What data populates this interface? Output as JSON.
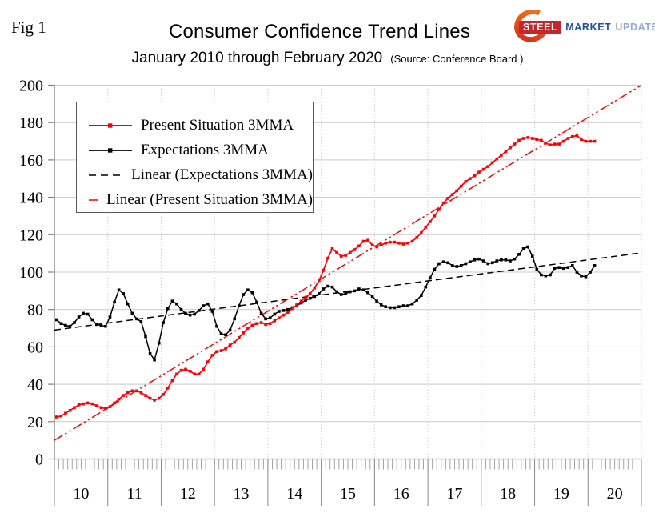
{
  "header": {
    "fig_label": "Fig 1",
    "title": "Consumer Confidence Trend Lines",
    "subtitle": "January 2010 through February 2020",
    "source": "(Source: Conference Board )"
  },
  "logo": {
    "steel": "STEEL",
    "market": "MARKET",
    "update": "UPDATE",
    "steel_bg_color": "#c4262e",
    "market_color": "#27509b",
    "update_color": "#93a9d1",
    "arc_color_start": "#d52b1e",
    "arc_color_end": "#f47b20"
  },
  "legend": {
    "items": [
      {
        "label": "Present Situation 3MMA",
        "style": "red-solid-marker",
        "color": "#ff0000"
      },
      {
        "label": "Expectations 3MMA",
        "style": "black-solid-marker",
        "color": "#000000"
      },
      {
        "label": "Linear (Expectations 3MMA)",
        "style": "black-dashed",
        "color": "#000000"
      },
      {
        "label": "Linear (Present Situation 3MMA)",
        "style": "red-dash-dot-dot",
        "color": "#ff0000"
      }
    ]
  },
  "chart_data": {
    "type": "line",
    "title": "Consumer Confidence Trend Lines",
    "subtitle": "January 2010 through February 2020",
    "x_start": "2010-01",
    "x_end": "2020-02",
    "points_per_year": 12,
    "y_axis": {
      "min": 0,
      "max": 200,
      "tick_step": 20,
      "ticks": [
        0,
        20,
        40,
        60,
        80,
        100,
        120,
        140,
        160,
        180,
        200
      ]
    },
    "x_axis": {
      "year_labels": [
        "10",
        "11",
        "12",
        "13",
        "14",
        "15",
        "16",
        "17",
        "18",
        "19",
        "20"
      ],
      "minor_ticks": "monthly"
    },
    "grid": {
      "horizontal": true,
      "vertical_year_lines": "dotted"
    },
    "legend_position": "upper-left",
    "series": [
      {
        "name": "Present Situation 3MMA",
        "color": "#ff0000",
        "marker": "square",
        "values": [
          22.5,
          23,
          24.5,
          26,
          27.5,
          29,
          29.5,
          30,
          29.5,
          28.5,
          27.5,
          27,
          28,
          30,
          32,
          34,
          35.5,
          36.5,
          36.5,
          35.5,
          34,
          32.5,
          31.5,
          32.5,
          34.5,
          38,
          42,
          45.5,
          47.5,
          48,
          47,
          45.5,
          45.5,
          48,
          52,
          55.5,
          57.5,
          58,
          59,
          61,
          62.5,
          65,
          67.5,
          70,
          71.5,
          72.5,
          73,
          72,
          72.5,
          74,
          75.5,
          77,
          78.5,
          80.5,
          82.5,
          84.5,
          86.5,
          88.5,
          91.5,
          95.5,
          101,
          107.5,
          112.5,
          110.5,
          108.5,
          109,
          110.5,
          112,
          114,
          116.5,
          117,
          114.5,
          113.5,
          114.5,
          115.5,
          116,
          116,
          115.5,
          115,
          115.5,
          116.5,
          118.5,
          121,
          124,
          127,
          130,
          133.5,
          137,
          139.5,
          141.5,
          143.5,
          146,
          148.5,
          150,
          151.5,
          153.5,
          155,
          156.5,
          158.5,
          160.5,
          162.5,
          164.5,
          166.5,
          168.5,
          170.5,
          171.5,
          172,
          171.5,
          171,
          170.5,
          169,
          168,
          168.5,
          168.5,
          170,
          171.5,
          172.5,
          173,
          171,
          170,
          170,
          170
        ]
      },
      {
        "name": "Expectations 3MMA",
        "color": "#000000",
        "marker": "square",
        "values": [
          74.5,
          72.5,
          71.5,
          71,
          73,
          76,
          78,
          77.5,
          74.5,
          72,
          71.5,
          71,
          76,
          84,
          90.5,
          88.5,
          83,
          78,
          75,
          73.5,
          65.5,
          56.5,
          53,
          62,
          73,
          80.5,
          84.5,
          83,
          80,
          78,
          77,
          77.5,
          79.5,
          82,
          83,
          79,
          71,
          67,
          66.5,
          69,
          75,
          82,
          88,
          90.5,
          89,
          84,
          78,
          75,
          75.5,
          77.5,
          79,
          79.5,
          80,
          81,
          82,
          83.5,
          85,
          86,
          87,
          88.5,
          91,
          92.5,
          92,
          89.5,
          88,
          88.5,
          89.5,
          90,
          91,
          90.5,
          89,
          87,
          84.5,
          82.5,
          81.5,
          81,
          81,
          81.5,
          82,
          82,
          83,
          85,
          87.5,
          92,
          97,
          101.5,
          104.5,
          105.5,
          105,
          103.5,
          103,
          103.5,
          104.5,
          105.5,
          106.5,
          107,
          106,
          104.5,
          105,
          106,
          106.5,
          106.5,
          106,
          107,
          109.5,
          112.5,
          113.5,
          108.5,
          101.5,
          98.5,
          98,
          98.5,
          102,
          102.5,
          102,
          102.5,
          103.5,
          100,
          98,
          97.5,
          100,
          103.5
        ]
      }
    ],
    "trendlines": [
      {
        "label": "Linear (Expectations 3MMA)",
        "color": "#000000",
        "pattern": "dashed",
        "value_at_start": 69,
        "value_at_end": 110.3
      },
      {
        "label": "Linear (Present Situation 3MMA)",
        "color": "#ff0000",
        "pattern": "dash-dot-dot",
        "value_at_start": 10,
        "value_at_end": 200
      }
    ]
  }
}
